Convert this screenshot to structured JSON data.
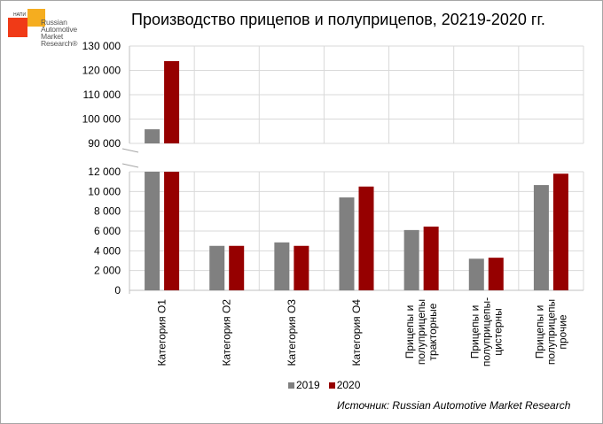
{
  "logo": {
    "badge": "НАПИ",
    "lines": [
      "Russian",
      "Automotive",
      "Market",
      "Research®"
    ]
  },
  "title": "Производство прицепов и полуприцепов, 20219-2020 гг.",
  "source": "Источник: Russian Automotive Market Research",
  "colors": {
    "2019": "#808080",
    "2020": "#960000",
    "grid": "#d9d9d9"
  },
  "chart_data": {
    "type": "bar",
    "title": "Производство прицепов и полуприцепов, 20219-2020 гг.",
    "xlabel": "",
    "ylabel": "",
    "broken_axis": true,
    "upper_axis": {
      "ylim": [
        90000,
        130000
      ],
      "ticks": [
        "90 000",
        "100 000",
        "110 000",
        "120 000",
        "130 000"
      ]
    },
    "lower_axis": {
      "ylim": [
        0,
        12000
      ],
      "ticks": [
        "0",
        "2 000",
        "4 000",
        "6 000",
        "8 000",
        "10 000",
        "12 000"
      ]
    },
    "categories": [
      "Категория О1",
      "Категория О2",
      "Категория О3",
      "Категория О4",
      "Прицепы и полуприцепы тракторные",
      "Прицепы и полуприцепы-цистерны",
      "Прицепы и полуприцепы прочие"
    ],
    "category_lines": [
      [
        "Категория О1"
      ],
      [
        "Категория О2"
      ],
      [
        "Категория О3"
      ],
      [
        "Категория О4"
      ],
      [
        "Прицепы  и",
        "полуприцепы",
        "тракторные"
      ],
      [
        "Прицепы и",
        "полуприцепы-",
        "цистерны"
      ],
      [
        "Прицепы и",
        "полуприцепы",
        "прочие"
      ]
    ],
    "series": [
      {
        "name": "2019",
        "color": "#808080",
        "values": [
          95800,
          4500,
          4850,
          9400,
          6100,
          3200,
          10650
        ]
      },
      {
        "name": "2020",
        "color": "#960000",
        "values": [
          123800,
          4500,
          4500,
          10500,
          6450,
          3300,
          11800
        ]
      }
    ],
    "legend": {
      "position": "bottom",
      "entries": [
        "2019",
        "2020"
      ]
    },
    "grid": true
  }
}
